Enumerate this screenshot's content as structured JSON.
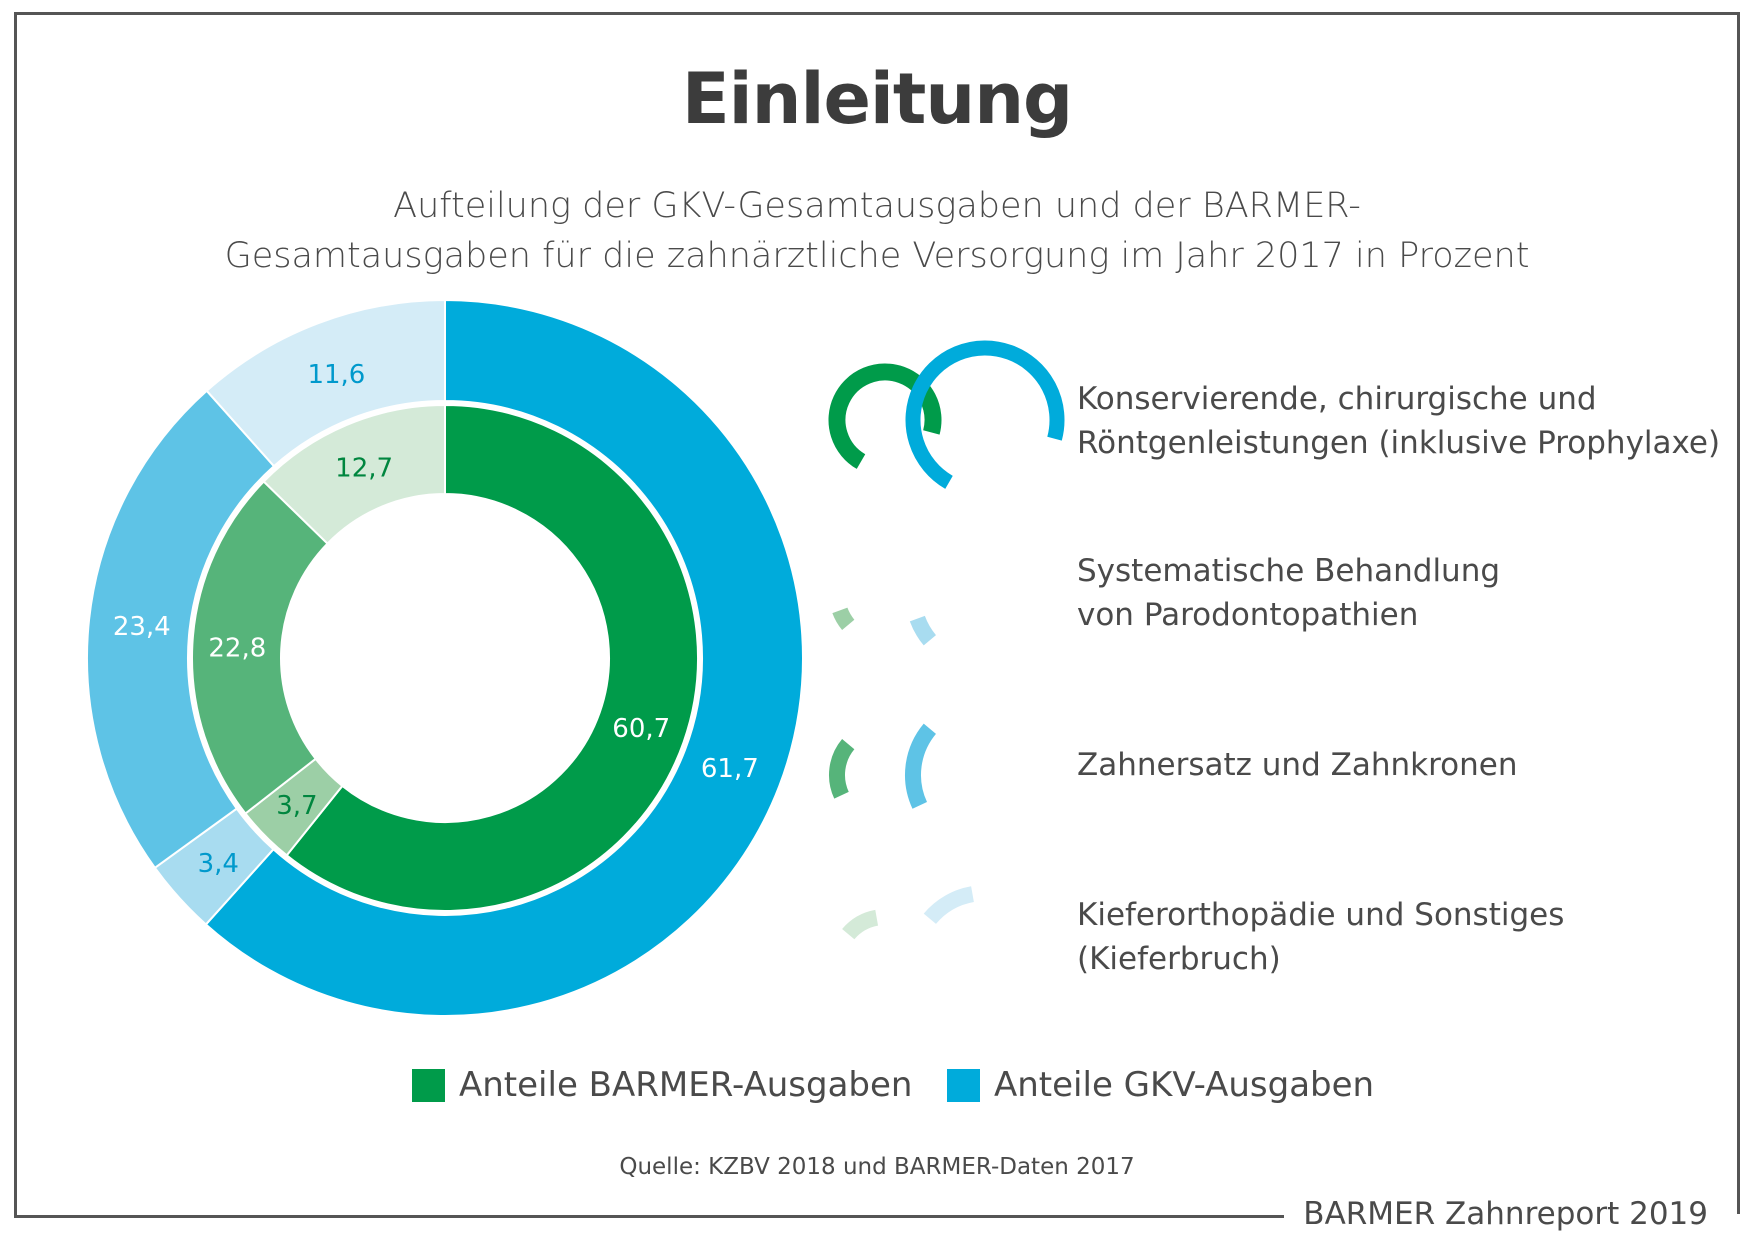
{
  "title": "Einleitung",
  "subtitle_line1": "Aufteilung der GKV-Gesamtausgaben und der BARMER-",
  "subtitle_line2": "Gesamtausgaben für die zahnärztliche Versorgung im Jahr 2017 in Prozent",
  "chart_data": {
    "type": "donut",
    "categories": [
      "Konservierende, chirurgische und Röntgenleistungen (inklusive Prophylaxe)",
      "Systematische Behandlung von Parodontopathien",
      "Zahnersatz und Zahnkronen",
      "Kieferorthopädie und Sonstiges (Kieferbruch)"
    ],
    "series": [
      {
        "name": "Anteile BARMER-Ausgaben",
        "ring": "inner",
        "values": [
          60.7,
          3.7,
          22.8,
          12.7
        ],
        "labels": [
          "60,7",
          "3,7",
          "22,8",
          "12,7"
        ],
        "colors": [
          "#009b4a",
          "#9ccfa6",
          "#56b47a",
          "#d4ead8"
        ],
        "label_colors": [
          "#ffffff",
          "#00863f",
          "#ffffff",
          "#00863f"
        ]
      },
      {
        "name": "Anteile GKV-Ausgaben",
        "ring": "outer",
        "values": [
          61.7,
          3.4,
          23.4,
          11.6
        ],
        "labels": [
          "61,7",
          "3,4",
          "23,4",
          "11,6"
        ],
        "colors": [
          "#00abdb",
          "#a8dcf0",
          "#5ec3e6",
          "#d4ecf7"
        ],
        "label_colors": [
          "#ffffff",
          "#0099cc",
          "#ffffff",
          "#0099cc"
        ]
      }
    ],
    "legend_categories": [
      {
        "line1": "Konservierende, chirurgische und",
        "line2": "Röntgenleistungen (inklusive Prophylaxe)"
      },
      {
        "line1": "Systematische Behandlung",
        "line2": "von Parodontopathien"
      },
      {
        "line1": "Zahnersatz und Zahnkronen",
        "line2": ""
      },
      {
        "line1": "Kieferorthopädie und Sonstiges",
        "line2": "(Kieferbruch)"
      }
    ],
    "legend_series": [
      {
        "label": "Anteile BARMER-Ausgaben",
        "color": "#009b4a"
      },
      {
        "label": "Anteile GKV-Ausgaben",
        "color": "#00abdb"
      }
    ]
  },
  "source": "Quelle: KZBV 2018 und BARMER-Daten 2017",
  "report": "BARMER Zahnreport 2019"
}
